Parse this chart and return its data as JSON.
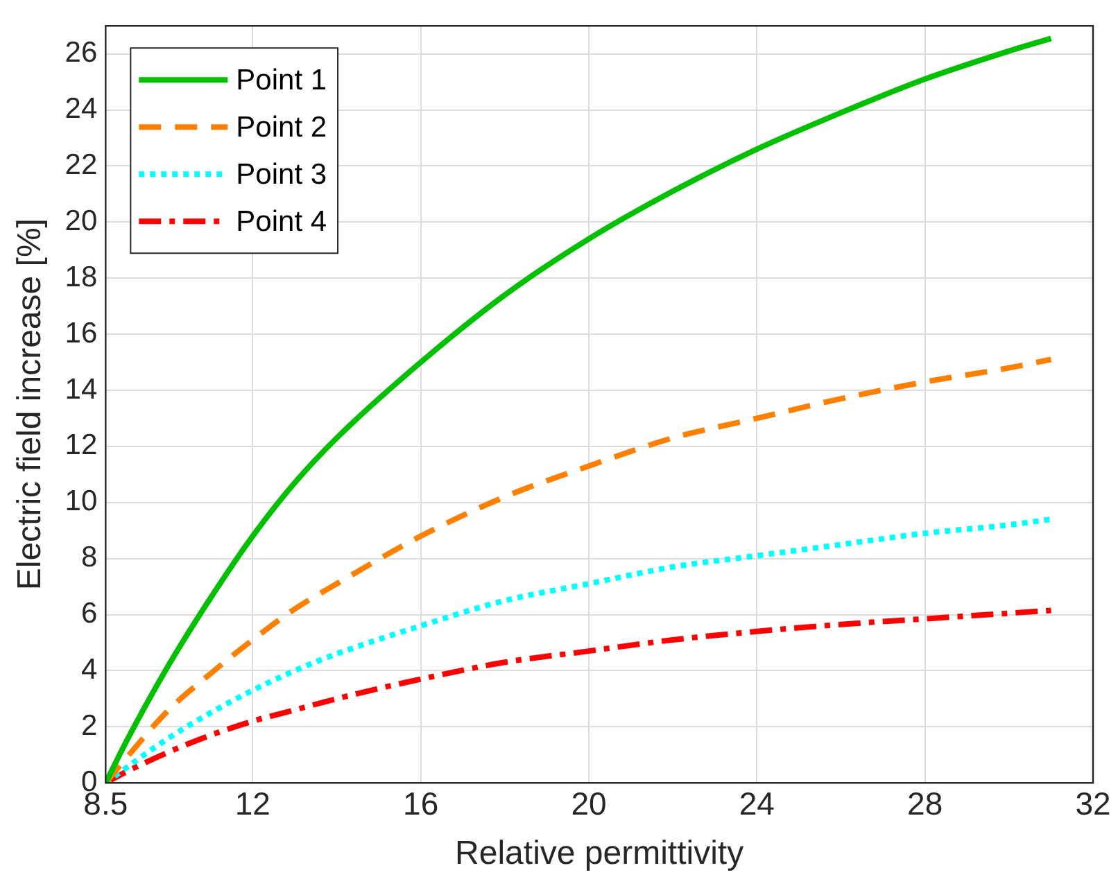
{
  "chart_data": {
    "type": "line",
    "xlabel": "Relative permittivity",
    "ylabel": "Electric field increase [%]",
    "x": [
      8.5,
      9,
      10,
      11,
      12,
      13,
      14,
      16,
      18,
      20,
      22,
      24,
      26,
      28,
      30,
      31
    ],
    "series": [
      {
        "name": "Point 1",
        "color": "#00c000",
        "line_style": "solid",
        "values": [
          0,
          1.5,
          4.2,
          6.6,
          8.8,
          10.7,
          12.3,
          15,
          17.4,
          19.4,
          21.1,
          22.6,
          23.9,
          25.1,
          26.1,
          26.55
        ]
      },
      {
        "name": "Point 2",
        "color": "#ff8000",
        "line_style": "dashed",
        "values": [
          0,
          0.9,
          2.6,
          3.9,
          5.1,
          6.2,
          7.1,
          8.8,
          10.2,
          11.3,
          12.3,
          13,
          13.7,
          14.3,
          14.8,
          15.1
        ]
      },
      {
        "name": "Point 3",
        "color": "#00ffff",
        "line_style": "dotted",
        "values": [
          0,
          0.55,
          1.6,
          2.5,
          3.3,
          4,
          4.6,
          5.6,
          6.5,
          7.1,
          7.7,
          8.1,
          8.5,
          8.9,
          9.2,
          9.4
        ]
      },
      {
        "name": "Point 4",
        "color": "#ff0000",
        "line_style": "dashdot",
        "values": [
          0,
          0.4,
          1.1,
          1.7,
          2.2,
          2.6,
          3,
          3.7,
          4.3,
          4.7,
          5.1,
          5.4,
          5.65,
          5.85,
          6.05,
          6.15
        ]
      }
    ],
    "xlim": [
      8.5,
      32
    ],
    "xticks": [
      8.5,
      12,
      16,
      20,
      24,
      28,
      32
    ],
    "ylim": [
      0,
      27
    ],
    "yticks": [
      0,
      2,
      4,
      6,
      8,
      10,
      12,
      14,
      16,
      18,
      20,
      22,
      24,
      26
    ],
    "grid": true,
    "legend": "top left",
    "marker": "none"
  }
}
